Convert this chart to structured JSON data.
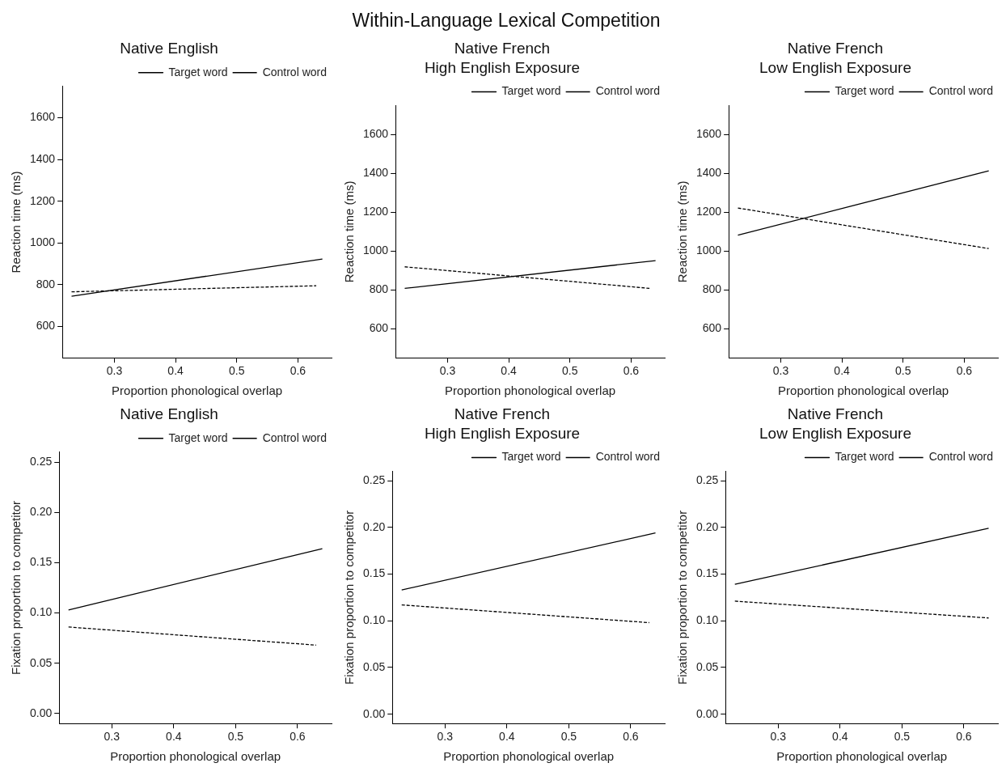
{
  "chart_data": [
    {
      "type": "other",
      "title": "Within-Language Lexical Competition"
    },
    {
      "type": "line",
      "title": "Native English",
      "xlabel": "Proportion phonological overlap",
      "ylabel": "Reaction time (ms)",
      "xlim": [
        0.215,
        0.655
      ],
      "xticks": [
        0.3,
        0.4,
        0.5,
        0.6
      ],
      "ylim": [
        450,
        1750
      ],
      "yticks": [
        600,
        800,
        1000,
        1200,
        1400,
        1600
      ],
      "legend": "top right",
      "series": [
        {
          "name": "Target word",
          "color": "#000000",
          "line_style": "solid",
          "x": [
            0.23,
            0.64
          ],
          "values": [
            745,
            923
          ]
        },
        {
          "name": "Control word",
          "color": "#000000",
          "line_style": "dashed",
          "x": [
            0.23,
            0.63
          ],
          "values": [
            766,
            795
          ]
        }
      ]
    },
    {
      "type": "line",
      "title": "Native French\nHigh English Exposure",
      "xlabel": "Proportion phonological overlap",
      "ylabel": "Reaction time (ms)",
      "xlim": [
        0.215,
        0.655
      ],
      "xticks": [
        0.3,
        0.4,
        0.5,
        0.6
      ],
      "ylim": [
        450,
        1750
      ],
      "yticks": [
        600,
        800,
        1000,
        1200,
        1400,
        1600
      ],
      "legend": "top right",
      "series": [
        {
          "name": "Target word",
          "color": "#000000",
          "line_style": "solid",
          "x": [
            0.23,
            0.64
          ],
          "values": [
            808,
            951
          ]
        },
        {
          "name": "Control word",
          "color": "#000000",
          "line_style": "dashed",
          "x": [
            0.23,
            0.63
          ],
          "values": [
            919,
            808
          ]
        }
      ]
    },
    {
      "type": "line",
      "title": "Native French\nLow English Exposure",
      "xlabel": "Proportion phonological overlap",
      "ylabel": "Reaction time (ms)",
      "xlim": [
        0.215,
        0.655
      ],
      "xticks": [
        0.3,
        0.4,
        0.5,
        0.6
      ],
      "ylim": [
        450,
        1750
      ],
      "yticks": [
        600,
        800,
        1000,
        1200,
        1400,
        1600
      ],
      "legend": "top right",
      "series": [
        {
          "name": "Target word",
          "color": "#000000",
          "line_style": "solid",
          "x": [
            0.23,
            0.64
          ],
          "values": [
            1082,
            1414
          ]
        },
        {
          "name": "Control word",
          "color": "#000000",
          "line_style": "dashed",
          "x": [
            0.23,
            0.64
          ],
          "values": [
            1222,
            1013
          ]
        }
      ]
    },
    {
      "type": "line",
      "title": "Native English",
      "xlabel": "Proportion phonological overlap",
      "ylabel": "Fixation proportion to competitor",
      "xlim": [
        0.215,
        0.655
      ],
      "xticks": [
        0.3,
        0.4,
        0.5,
        0.6
      ],
      "ylim": [
        -0.01,
        0.26
      ],
      "yticks": [
        {
          "value": 0,
          "label": "0.00"
        },
        0.05,
        {
          "value": 0.1,
          "label": "0.10"
        },
        0.15,
        {
          "value": 0.2,
          "label": "0.20"
        },
        0.25
      ],
      "legend": "top right",
      "series": [
        {
          "name": "Target word",
          "color": "#000000",
          "line_style": "solid",
          "x": [
            0.23,
            0.64
          ],
          "values": [
            0.103,
            0.164
          ]
        },
        {
          "name": "Control word",
          "color": "#000000",
          "line_style": "dashed",
          "x": [
            0.23,
            0.63
          ],
          "values": [
            0.086,
            0.068
          ]
        }
      ]
    },
    {
      "type": "line",
      "title": "Native French\nHigh English Exposure",
      "xlabel": "Proportion phonological overlap",
      "ylabel": "Fixation proportion to competitor",
      "xlim": [
        0.215,
        0.655
      ],
      "xticks": [
        0.3,
        0.4,
        0.5,
        0.6
      ],
      "ylim": [
        -0.01,
        0.26
      ],
      "yticks": [
        {
          "value": 0,
          "label": "0.00"
        },
        0.05,
        {
          "value": 0.1,
          "label": "0.10"
        },
        0.15,
        {
          "value": 0.2,
          "label": "0.20"
        },
        0.25
      ],
      "legend": "top right",
      "series": [
        {
          "name": "Target word",
          "color": "#000000",
          "line_style": "solid",
          "x": [
            0.23,
            0.64
          ],
          "values": [
            0.133,
            0.194
          ]
        },
        {
          "name": "Control word",
          "color": "#000000",
          "line_style": "dashed",
          "x": [
            0.23,
            0.63
          ],
          "values": [
            0.117,
            0.098
          ]
        }
      ]
    },
    {
      "type": "line",
      "title": "Native French\nLow English Exposure",
      "xlabel": "Proportion phonological overlap",
      "ylabel": "Fixation proportion to competitor",
      "xlim": [
        0.215,
        0.655
      ],
      "xticks": [
        0.3,
        0.4,
        0.5,
        0.6
      ],
      "ylim": [
        -0.01,
        0.26
      ],
      "yticks": [
        {
          "value": 0,
          "label": "0.00"
        },
        0.05,
        {
          "value": 0.1,
          "label": "0.10"
        },
        0.15,
        {
          "value": 0.2,
          "label": "0.20"
        },
        0.25
      ],
      "legend": "top right",
      "series": [
        {
          "name": "Target word",
          "color": "#000000",
          "line_style": "solid",
          "x": [
            0.23,
            0.64
          ],
          "values": [
            0.139,
            0.199
          ]
        },
        {
          "name": "Control word",
          "color": "#000000",
          "line_style": "dashed",
          "x": [
            0.23,
            0.64
          ],
          "values": [
            0.121,
            0.103
          ]
        }
      ]
    }
  ]
}
